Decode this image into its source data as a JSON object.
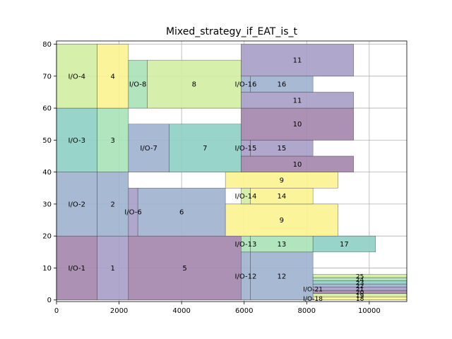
{
  "chart_data": {
    "type": "rectangles",
    "title": "Mixed_strategy_if_EAT_is_t",
    "xlim": [
      0,
      11200
    ],
    "ylim": [
      -0.5,
      81
    ],
    "x_ticks": [
      0,
      2000,
      4000,
      6000,
      8000,
      10000
    ],
    "y_ticks": [
      0,
      10,
      20,
      30,
      40,
      50,
      60,
      70,
      80
    ],
    "grid": true,
    "palette": {
      "purple": "#a588ae",
      "lavender": "#a9a0c8",
      "slate": "#a1b3cf",
      "teal": "#8fd0c4",
      "mint": "#a9e3b9",
      "lime": "#d2eea3",
      "yellow": "#fcf391",
      "edge": "#333333"
    },
    "rects": [
      {
        "label": "I/O-1",
        "x": 0,
        "y": 0,
        "w": 1300,
        "h": 20,
        "color": "purple"
      },
      {
        "label": "1",
        "x": 1300,
        "y": 0,
        "w": 1000,
        "h": 20,
        "color": "lavender"
      },
      {
        "label": "5",
        "x": 2300,
        "y": 0,
        "w": 3600,
        "h": 20,
        "color": "purple"
      },
      {
        "label": "I/O-2",
        "x": 0,
        "y": 20,
        "w": 1300,
        "h": 20,
        "color": "slate"
      },
      {
        "label": "2",
        "x": 1300,
        "y": 20,
        "w": 1000,
        "h": 20,
        "color": "slate"
      },
      {
        "label": "I/O-3",
        "x": 0,
        "y": 40,
        "w": 1300,
        "h": 20,
        "color": "teal"
      },
      {
        "label": "3",
        "x": 1300,
        "y": 40,
        "w": 1000,
        "h": 20,
        "color": "mint"
      },
      {
        "label": "I/O-4",
        "x": 0,
        "y": 60,
        "w": 1300,
        "h": 20,
        "color": "lime"
      },
      {
        "label": "4",
        "x": 1300,
        "y": 60,
        "w": 1000,
        "h": 20,
        "color": "yellow"
      },
      {
        "label": "I/O-6",
        "x": 2300,
        "y": 20,
        "w": 300,
        "h": 15,
        "color": "lavender"
      },
      {
        "label": "6",
        "x": 2600,
        "y": 20,
        "w": 2800,
        "h": 15,
        "color": "slate"
      },
      {
        "label": "I/O-7",
        "x": 2300,
        "y": 40,
        "w": 1300,
        "h": 15,
        "color": "slate"
      },
      {
        "label": "7",
        "x": 3600,
        "y": 40,
        "w": 2300,
        "h": 15,
        "color": "teal"
      },
      {
        "label": "I/O-8",
        "x": 2300,
        "y": 60,
        "w": 600,
        "h": 15,
        "color": "mint"
      },
      {
        "label": "8",
        "x": 2900,
        "y": 60,
        "w": 3000,
        "h": 15,
        "color": "lime"
      },
      {
        "label": "I/O-12",
        "x": 5900,
        "y": 0,
        "w": 300,
        "h": 15,
        "color": "slate"
      },
      {
        "label": "12",
        "x": 6200,
        "y": 0,
        "w": 2000,
        "h": 15,
        "color": "slate"
      },
      {
        "label": "I/O-13",
        "x": 5900,
        "y": 15,
        "w": 300,
        "h": 5,
        "color": "mint"
      },
      {
        "label": "13",
        "x": 6200,
        "y": 15,
        "w": 2000,
        "h": 5,
        "color": "mint"
      },
      {
        "label": "17",
        "x": 8200,
        "y": 15,
        "w": 2000,
        "h": 5,
        "color": "teal"
      },
      {
        "label": "9",
        "x": 5400,
        "y": 20,
        "w": 3600,
        "h": 10,
        "color": "yellow"
      },
      {
        "label": "I/O-14",
        "x": 5900,
        "y": 30,
        "w": 300,
        "h": 5,
        "color": "lime"
      },
      {
        "label": "14",
        "x": 6200,
        "y": 30,
        "w": 2000,
        "h": 5,
        "color": "yellow"
      },
      {
        "label": "9",
        "x": 5400,
        "y": 35,
        "w": 3600,
        "h": 5,
        "color": "yellow"
      },
      {
        "label": "10",
        "x": 5900,
        "y": 40,
        "w": 3600,
        "h": 5,
        "color": "purple"
      },
      {
        "label": "I/O-15",
        "x": 5900,
        "y": 45,
        "w": 300,
        "h": 5,
        "color": "lavender"
      },
      {
        "label": "15",
        "x": 6200,
        "y": 45,
        "w": 2000,
        "h": 5,
        "color": "lavender"
      },
      {
        "label": "10",
        "x": 5900,
        "y": 50,
        "w": 3600,
        "h": 10,
        "color": "purple"
      },
      {
        "label": "11",
        "x": 5900,
        "y": 60,
        "w": 3600,
        "h": 5,
        "color": "lavender"
      },
      {
        "label": "I/O-16",
        "x": 5900,
        "y": 65,
        "w": 300,
        "h": 5,
        "color": "slate"
      },
      {
        "label": "16",
        "x": 6200,
        "y": 65,
        "w": 2000,
        "h": 5,
        "color": "slate"
      },
      {
        "label": "11",
        "x": 5900,
        "y": 70,
        "w": 3600,
        "h": 10,
        "color": "lavender"
      },
      {
        "label": "I/O-18",
        "x": 8200,
        "y": 0,
        "w": 0,
        "h": 1,
        "color": "yellow"
      },
      {
        "label": "18",
        "x": 8200,
        "y": 0,
        "w": 3000,
        "h": 1,
        "color": "yellow"
      },
      {
        "label": "19",
        "x": 8200,
        "y": 1,
        "w": 3000,
        "h": 1,
        "color": "lime"
      },
      {
        "label": "20",
        "x": 8200,
        "y": 2,
        "w": 3000,
        "h": 1,
        "color": "purple"
      },
      {
        "label": "I/O-21",
        "x": 8200,
        "y": 3,
        "w": 0,
        "h": 1,
        "color": "lavender"
      },
      {
        "label": "21",
        "x": 8200,
        "y": 3,
        "w": 3000,
        "h": 1,
        "color": "lavender"
      },
      {
        "label": "22",
        "x": 8200,
        "y": 4,
        "w": 3000,
        "h": 1,
        "color": "slate"
      },
      {
        "label": "23",
        "x": 8200,
        "y": 5,
        "w": 3000,
        "h": 1,
        "color": "teal"
      },
      {
        "label": "24",
        "x": 8200,
        "y": 6,
        "w": 3000,
        "h": 1,
        "color": "mint"
      },
      {
        "label": "25",
        "x": 8200,
        "y": 7,
        "w": 3000,
        "h": 1,
        "color": "lime"
      }
    ]
  }
}
